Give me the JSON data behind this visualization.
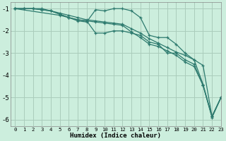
{
  "xlabel": "Humidex (Indice chaleur)",
  "background_color": "#cceedd",
  "grid_color": "#aaccbb",
  "line_color": "#2d7a6e",
  "xlim": [
    -0.5,
    23
  ],
  "ylim": [
    -6.3,
    -0.7
  ],
  "xticks": [
    0,
    1,
    2,
    3,
    4,
    5,
    6,
    7,
    8,
    9,
    10,
    11,
    12,
    13,
    14,
    15,
    16,
    17,
    18,
    19,
    20,
    21,
    22,
    23
  ],
  "yticks": [
    -6,
    -5,
    -4,
    -3,
    -2,
    -1
  ],
  "series": [
    {
      "x": [
        0,
        1,
        2,
        3,
        4,
        5,
        6,
        7,
        8,
        9,
        10,
        11,
        12,
        13,
        14,
        15,
        16,
        17,
        18,
        19,
        20,
        21,
        22,
        23
      ],
      "y": [
        -1.0,
        -1.0,
        -1.0,
        -1.05,
        -1.1,
        -1.2,
        -1.3,
        -1.4,
        -1.5,
        -1.55,
        -1.6,
        -1.65,
        -1.7,
        -1.9,
        -2.1,
        -2.35,
        -2.55,
        -2.75,
        -2.95,
        -3.1,
        -3.3,
        -3.55,
        -5.85,
        -5.0
      ]
    },
    {
      "x": [
        0,
        1,
        2,
        3,
        4,
        5,
        6,
        7,
        8,
        9,
        10,
        11,
        12,
        13,
        14,
        15,
        16,
        17,
        18,
        19,
        20,
        21,
        22,
        23
      ],
      "y": [
        -1.0,
        -1.0,
        -1.0,
        -1.05,
        -1.1,
        -1.25,
        -1.4,
        -1.5,
        -1.55,
        -1.6,
        -1.65,
        -1.7,
        -1.75,
        -2.05,
        -2.3,
        -2.6,
        -2.7,
        -2.9,
        -3.1,
        -3.4,
        -3.6,
        -4.45,
        -5.85,
        -5.0
      ]
    },
    {
      "x": [
        0,
        5,
        6,
        7,
        8,
        9,
        10,
        11,
        12,
        13,
        14,
        15,
        16,
        17,
        18,
        19,
        20,
        21,
        22,
        23
      ],
      "y": [
        -1.0,
        -1.3,
        -1.4,
        -1.55,
        -1.6,
        -1.05,
        -1.1,
        -1.0,
        -1.0,
        -1.1,
        -1.4,
        -2.2,
        -2.3,
        -2.3,
        -2.6,
        -3.0,
        -3.3,
        -4.4,
        -5.85,
        -5.0
      ]
    },
    {
      "x": [
        0,
        1,
        2,
        3,
        4,
        5,
        6,
        7,
        8,
        9,
        10,
        11,
        12,
        13,
        14,
        15,
        16,
        17,
        18,
        19,
        20,
        21,
        22,
        23
      ],
      "y": [
        -1.0,
        -1.0,
        -1.0,
        -1.0,
        -1.1,
        -1.25,
        -1.4,
        -1.5,
        -1.55,
        -2.1,
        -2.1,
        -2.0,
        -2.0,
        -2.1,
        -2.2,
        -2.5,
        -2.6,
        -3.0,
        -3.0,
        -3.3,
        -3.5,
        -4.45,
        -5.9,
        -5.0
      ]
    }
  ]
}
